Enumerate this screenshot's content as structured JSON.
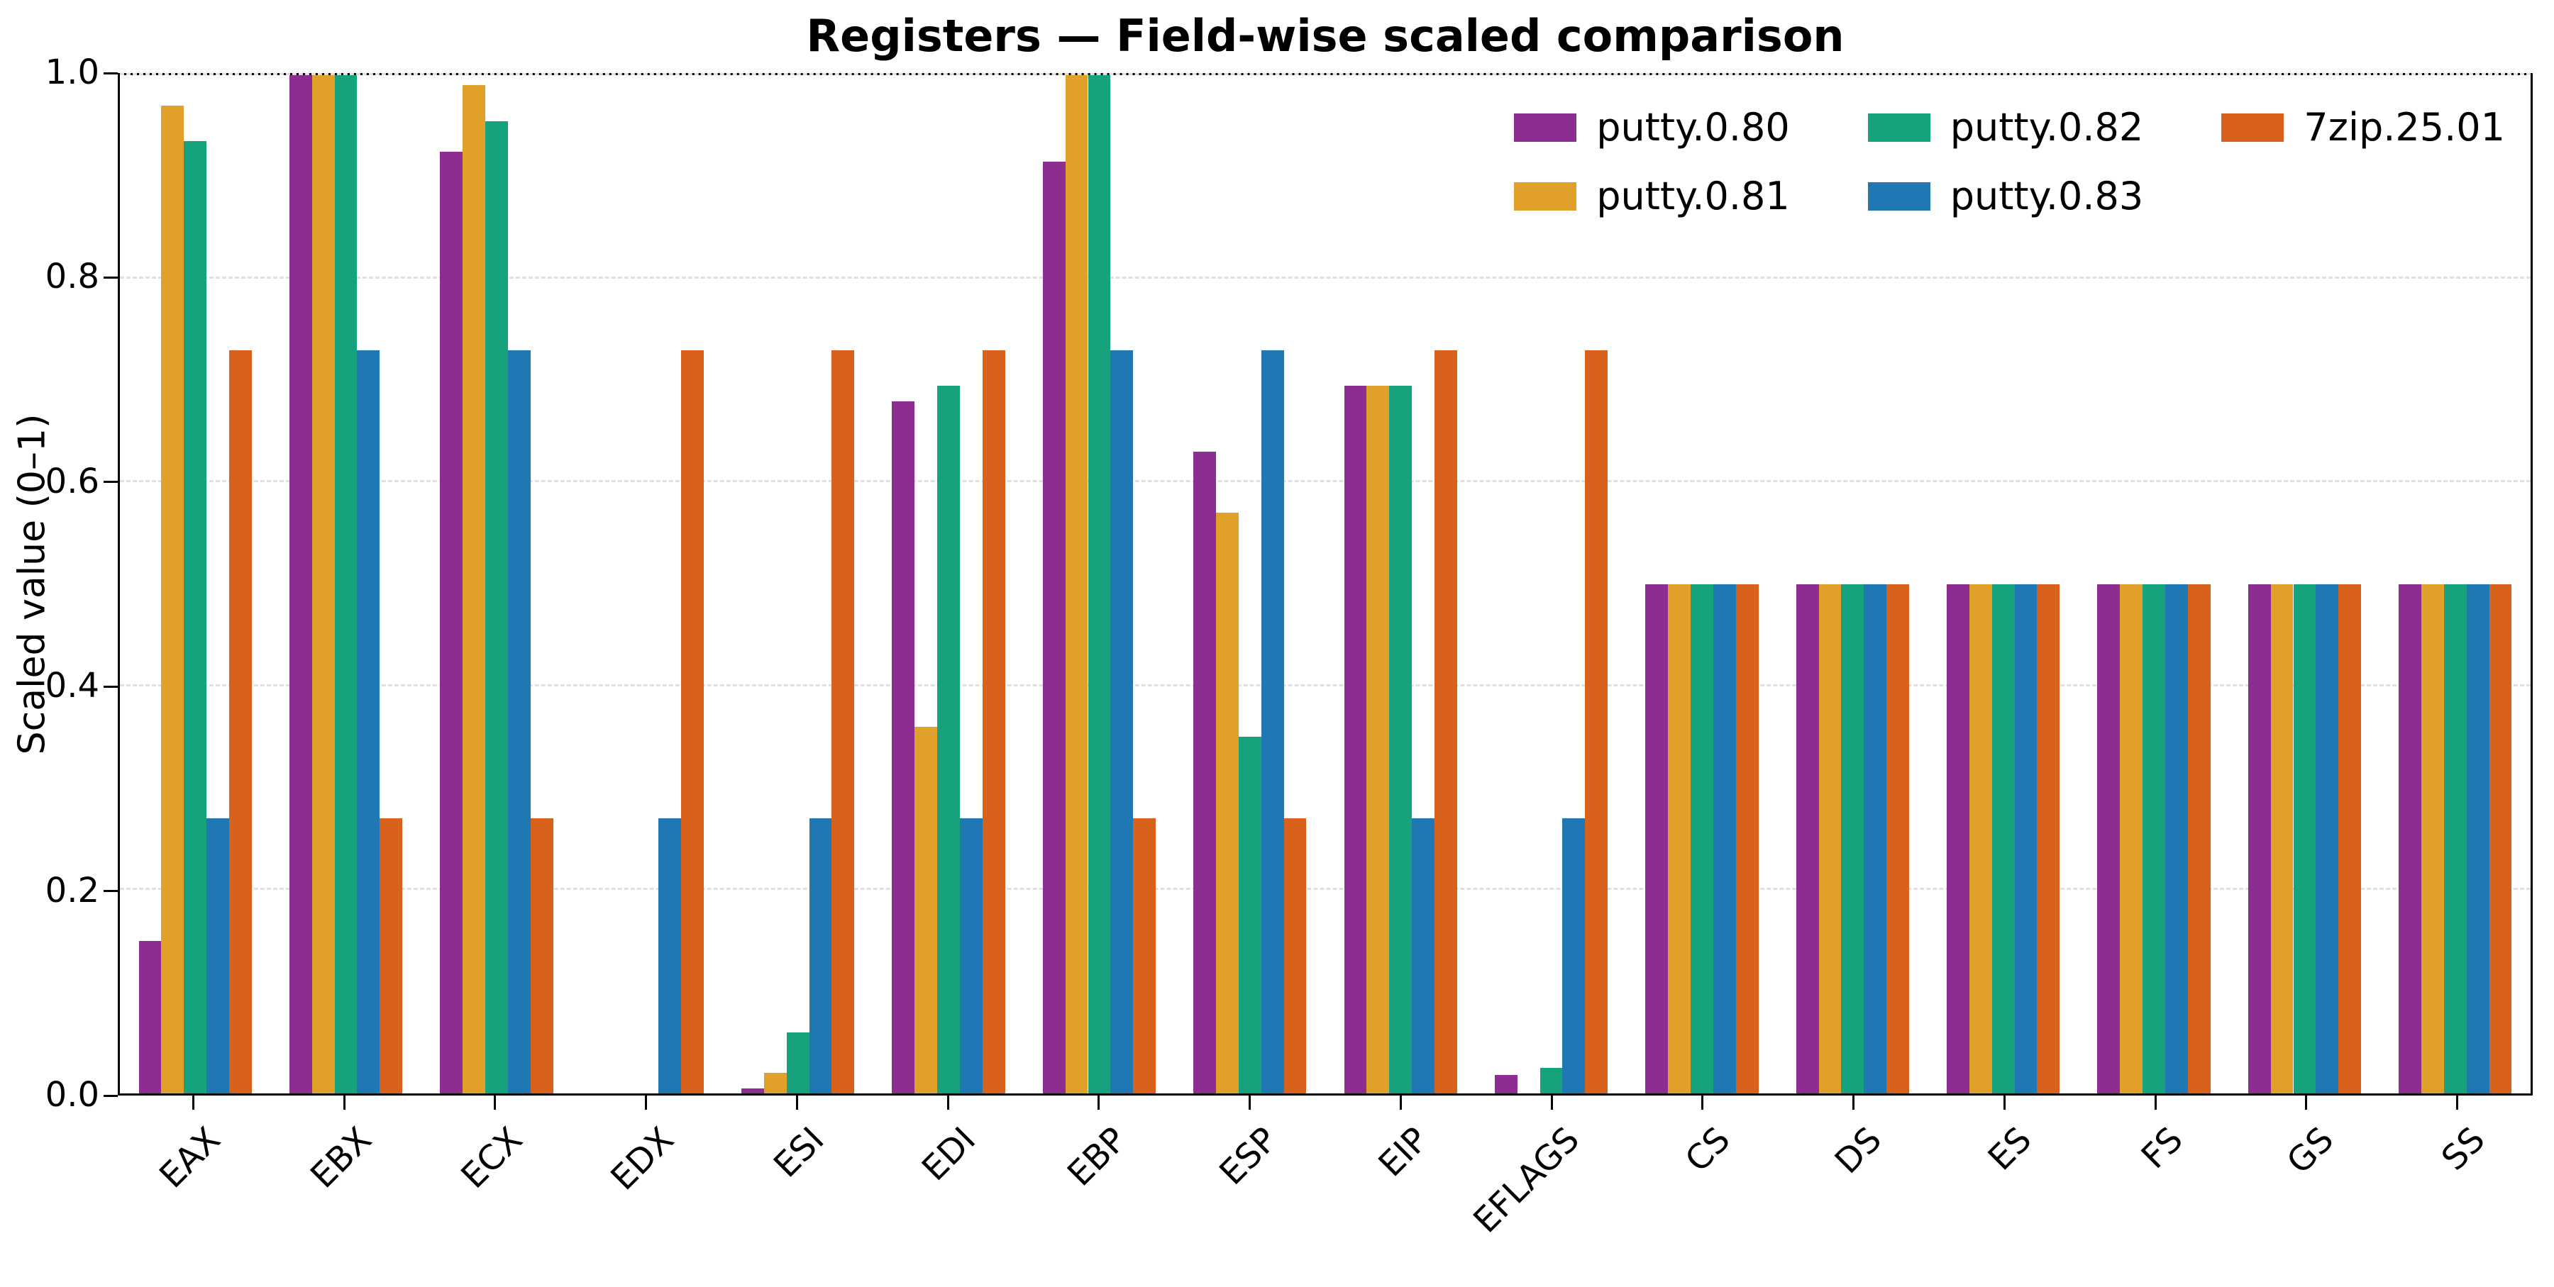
{
  "page": {
    "background": "#ffffff"
  },
  "chart_data": {
    "type": "bar",
    "title": "Registers — Field-wise scaled comparison",
    "ylabel": "Scaled value (0–1)",
    "xlabel": "",
    "ylim": [
      0,
      1
    ],
    "grid": "horizontal-dashed",
    "legend": {
      "location": "upper right",
      "rows": 2,
      "columns": 3
    },
    "yticks": [
      {
        "value": 0.0,
        "label": "0.0"
      },
      {
        "value": 0.2,
        "label": "0.2"
      },
      {
        "value": 0.4,
        "label": "0.4"
      },
      {
        "value": 0.6,
        "label": "0.6"
      },
      {
        "value": 0.8,
        "label": "0.8"
      },
      {
        "value": 1.0,
        "label": "1.0"
      }
    ],
    "categories": [
      "EAX",
      "EBX",
      "ECX",
      "EDX",
      "ESI",
      "EDI",
      "EBP",
      "ESP",
      "EIP",
      "EFLAGS",
      "CS",
      "DS",
      "ES",
      "FS",
      "GS",
      "SS"
    ],
    "series": [
      {
        "name": "putty.0.80",
        "color": "#8c2d8f",
        "values": [
          0.15,
          1.0,
          0.925,
          0.0,
          0.005,
          0.68,
          0.915,
          0.63,
          0.695,
          0.018,
          0.5,
          0.5,
          0.5,
          0.5,
          0.5,
          0.5
        ]
      },
      {
        "name": "putty.0.81",
        "color": "#e1a02a",
        "values": [
          0.97,
          1.0,
          0.99,
          0.0,
          0.02,
          0.36,
          1.0,
          0.57,
          0.695,
          0.0,
          0.5,
          0.5,
          0.5,
          0.5,
          0.5,
          0.5
        ]
      },
      {
        "name": "putty.0.82",
        "color": "#17a27e",
        "values": [
          0.935,
          1.0,
          0.955,
          0.0,
          0.06,
          0.695,
          1.0,
          0.35,
          0.695,
          0.025,
          0.5,
          0.5,
          0.5,
          0.5,
          0.5,
          0.5
        ]
      },
      {
        "name": "putty.0.83",
        "color": "#1f77b4",
        "values": [
          0.27,
          0.73,
          0.73,
          0.27,
          0.27,
          0.27,
          0.73,
          0.73,
          0.27,
          0.27,
          0.5,
          0.5,
          0.5,
          0.5,
          0.5,
          0.5
        ]
      },
      {
        "name": "7zip.25.01",
        "color": "#d8611c",
        "values": [
          0.73,
          0.27,
          0.27,
          0.73,
          0.73,
          0.73,
          0.27,
          0.27,
          0.73,
          0.73,
          0.5,
          0.5,
          0.5,
          0.5,
          0.5,
          0.5
        ]
      }
    ]
  }
}
